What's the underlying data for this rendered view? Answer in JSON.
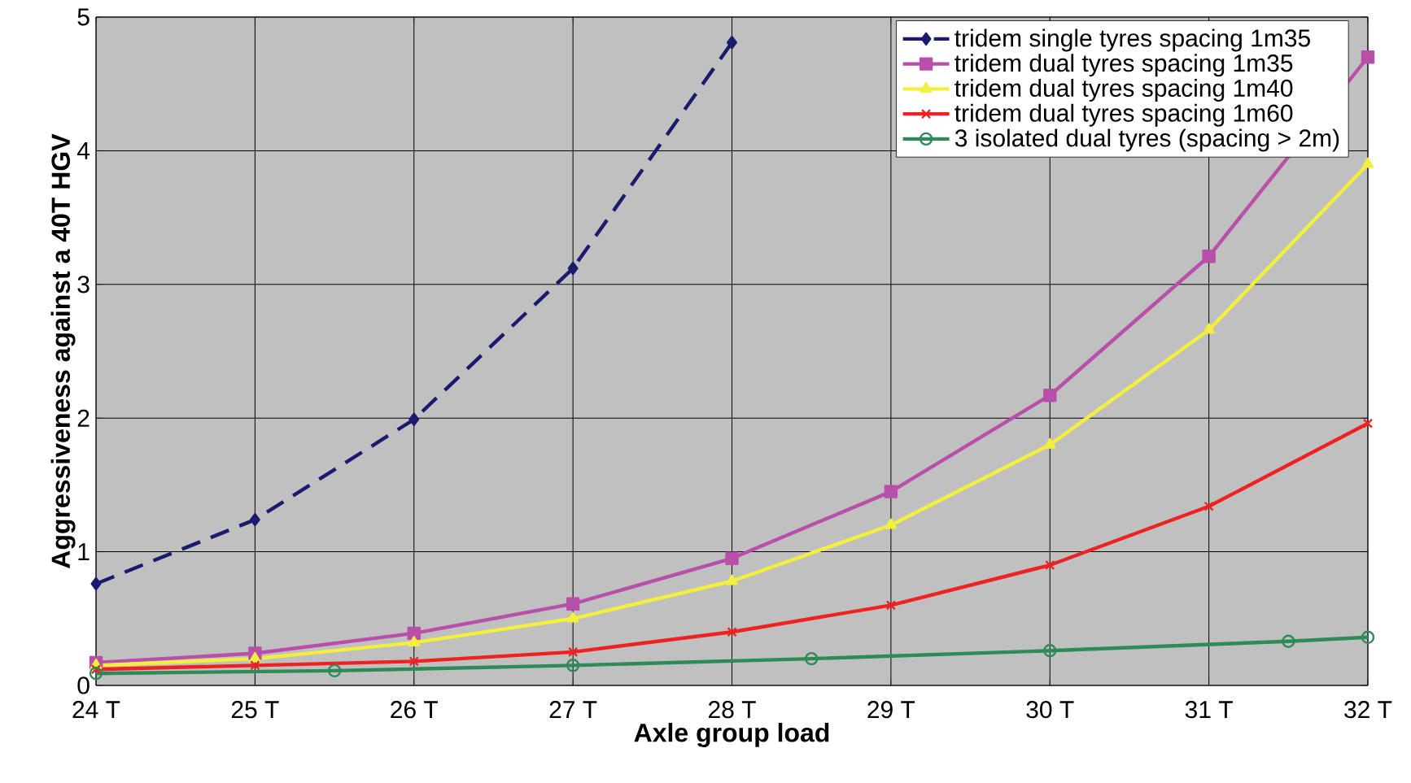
{
  "chart_data": {
    "type": "line",
    "xlabel": "Axle group load",
    "ylabel": "Aggressiveness against a 40T HGV",
    "x": [
      24,
      25,
      26,
      27,
      28,
      29,
      30,
      31,
      32
    ],
    "xlim": [
      24,
      32
    ],
    "ylim": [
      0,
      5
    ],
    "xticks": [
      {
        "value": 24,
        "label": "24 T"
      },
      {
        "value": 25,
        "label": "25 T"
      },
      {
        "value": 26,
        "label": "26 T"
      },
      {
        "value": 27,
        "label": "27 T"
      },
      {
        "value": 28,
        "label": "28 T"
      },
      {
        "value": 29,
        "label": "29 T"
      },
      {
        "value": 30,
        "label": "30 T"
      },
      {
        "value": 31,
        "label": "31 T"
      },
      {
        "value": 32,
        "label": "32 T"
      }
    ],
    "yticks": [
      0,
      1,
      2,
      3,
      4,
      5
    ],
    "grid": true,
    "legend": "top right",
    "series": [
      {
        "name": "tridem single tyres spacing 1m35",
        "color": "#1a1a6e",
        "marker": "diamond",
        "line_style": "dashed",
        "values": [
          0.76,
          1.24,
          1.99,
          3.12,
          4.81,
          null,
          null,
          null,
          null
        ]
      },
      {
        "name": "tridem dual tyres spacing 1m35",
        "color": "#b84fa8",
        "marker": "square",
        "line_style": "solid",
        "values": [
          0.17,
          0.24,
          0.39,
          0.61,
          0.95,
          1.45,
          2.17,
          3.21,
          4.7
        ]
      },
      {
        "name": "tridem dual tyres spacing 1m40",
        "color": "#f2f03c",
        "marker": "triangle",
        "line_style": "solid",
        "values": [
          0.15,
          0.2,
          0.32,
          0.5,
          0.78,
          1.2,
          1.8,
          2.66,
          3.9
        ]
      },
      {
        "name": "tridem dual tyres spacing 1m60",
        "color": "#ee2222",
        "marker": "cross",
        "line_style": "solid",
        "values": [
          0.12,
          0.15,
          0.18,
          0.25,
          0.4,
          0.6,
          0.9,
          1.34,
          1.96
        ]
      },
      {
        "name": "3 isolated dual tyres (spacing > 2m)",
        "color": "#2e8b57",
        "marker": "circle",
        "line_style": "solid",
        "x": [
          24,
          25.5,
          27,
          28.5,
          30,
          31.5,
          32
        ],
        "values": [
          0.09,
          0.11,
          0.15,
          0.2,
          0.26,
          0.33,
          0.36
        ]
      }
    ]
  }
}
